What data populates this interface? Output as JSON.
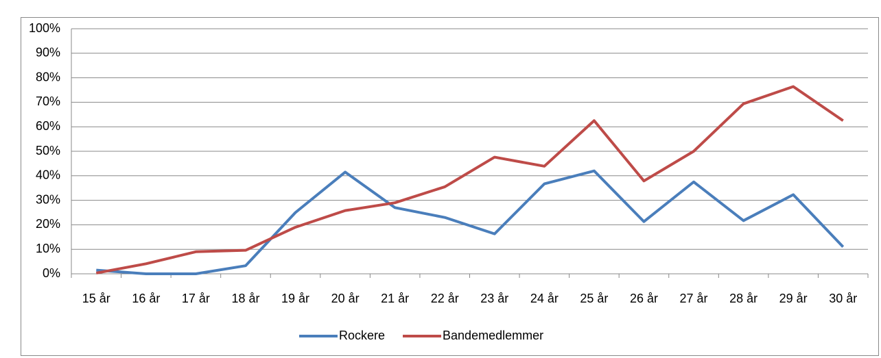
{
  "chart_data": {
    "type": "line",
    "categories": [
      "15 år",
      "16 år",
      "17 år",
      "18 år",
      "19 år",
      "20 år",
      "21 år",
      "22 år",
      "23 år",
      "24 år",
      "25 år",
      "26 år",
      "27 år",
      "28 år",
      "29 år",
      "30 år"
    ],
    "series": [
      {
        "name": "Rockere",
        "color": "#4a7ebb",
        "values": [
          1.5,
          0,
          0,
          3.3,
          25,
          41.5,
          27,
          23,
          16.3,
          36.7,
          42,
          21.3,
          37.5,
          21.7,
          32.3,
          11
        ]
      },
      {
        "name": "Bandemedlemmer",
        "color": "#be4b48",
        "values": [
          0.3,
          4.1,
          9,
          9.6,
          19,
          25.8,
          29,
          35.5,
          47.6,
          43.9,
          62.5,
          37.9,
          50,
          69.4,
          76.4,
          62.5
        ]
      }
    ],
    "ylim": [
      0,
      100
    ],
    "yticks": [
      {
        "value": 0,
        "label": "0%"
      },
      {
        "value": 10,
        "label": "10%"
      },
      {
        "value": 20,
        "label": "20%"
      },
      {
        "value": 30,
        "label": "30%"
      },
      {
        "value": 40,
        "label": "40%"
      },
      {
        "value": 50,
        "label": "50%"
      },
      {
        "value": 60,
        "label": "60%"
      },
      {
        "value": 70,
        "label": "70%"
      },
      {
        "value": 80,
        "label": "80%"
      },
      {
        "value": 90,
        "label": "90%"
      },
      {
        "value": 100,
        "label": "100%"
      }
    ],
    "grid": true,
    "legend": "bottom"
  }
}
